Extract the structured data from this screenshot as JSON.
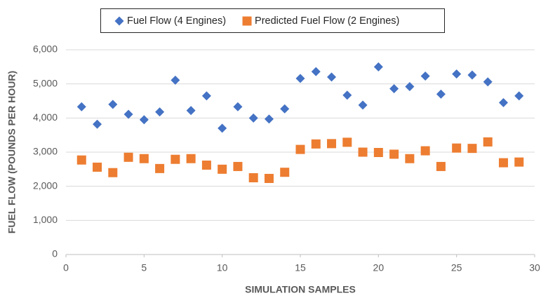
{
  "chart_data": {
    "type": "scatter",
    "x_label": "SIMULATION SAMPLES",
    "y_label": "FUEL FLOW (POUNDS PER HOUR)",
    "xlim": [
      0,
      30
    ],
    "xticks": [
      0,
      5,
      10,
      15,
      20,
      25,
      30
    ],
    "ylim": [
      0,
      6000
    ],
    "yticks": [
      0,
      {
        "value": 1000,
        "label": "1,000"
      },
      {
        "value": 2000,
        "label": "2,000"
      },
      {
        "value": 3000,
        "label": "3,000"
      },
      {
        "value": 4000,
        "label": "4,000"
      },
      {
        "value": 5000,
        "label": "5,000"
      },
      {
        "value": 6000,
        "label": "6,000"
      }
    ],
    "grid": true,
    "legend": "top",
    "x": [
      1,
      2,
      3,
      4,
      5,
      6,
      7,
      8,
      9,
      10,
      11,
      12,
      13,
      14,
      15,
      16,
      17,
      18,
      19,
      20,
      21,
      22,
      23,
      24,
      25,
      26,
      27,
      28,
      29
    ],
    "series": [
      {
        "name": "Fuel Flow (4 Engines)",
        "color": "#4472c4",
        "marker": "diamond",
        "values": [
          4330,
          3820,
          4400,
          4110,
          3950,
          4180,
          5110,
          4220,
          4650,
          3700,
          4330,
          4000,
          3970,
          4270,
          5160,
          5360,
          5200,
          4670,
          4380,
          5500,
          4860,
          4920,
          5230,
          4700,
          5290,
          5260,
          5060,
          4450,
          4650
        ]
      },
      {
        "name": "Predicted Fuel Flow (2 Engines)",
        "color": "#ed7d31",
        "marker": "square",
        "values": [
          2770,
          2560,
          2400,
          2850,
          2810,
          2520,
          2790,
          2810,
          2620,
          2500,
          2580,
          2250,
          2230,
          2410,
          3080,
          3240,
          3250,
          3290,
          3000,
          2990,
          2940,
          2810,
          3040,
          2580,
          3120,
          3110,
          3300,
          2690,
          2710
        ]
      }
    ]
  }
}
